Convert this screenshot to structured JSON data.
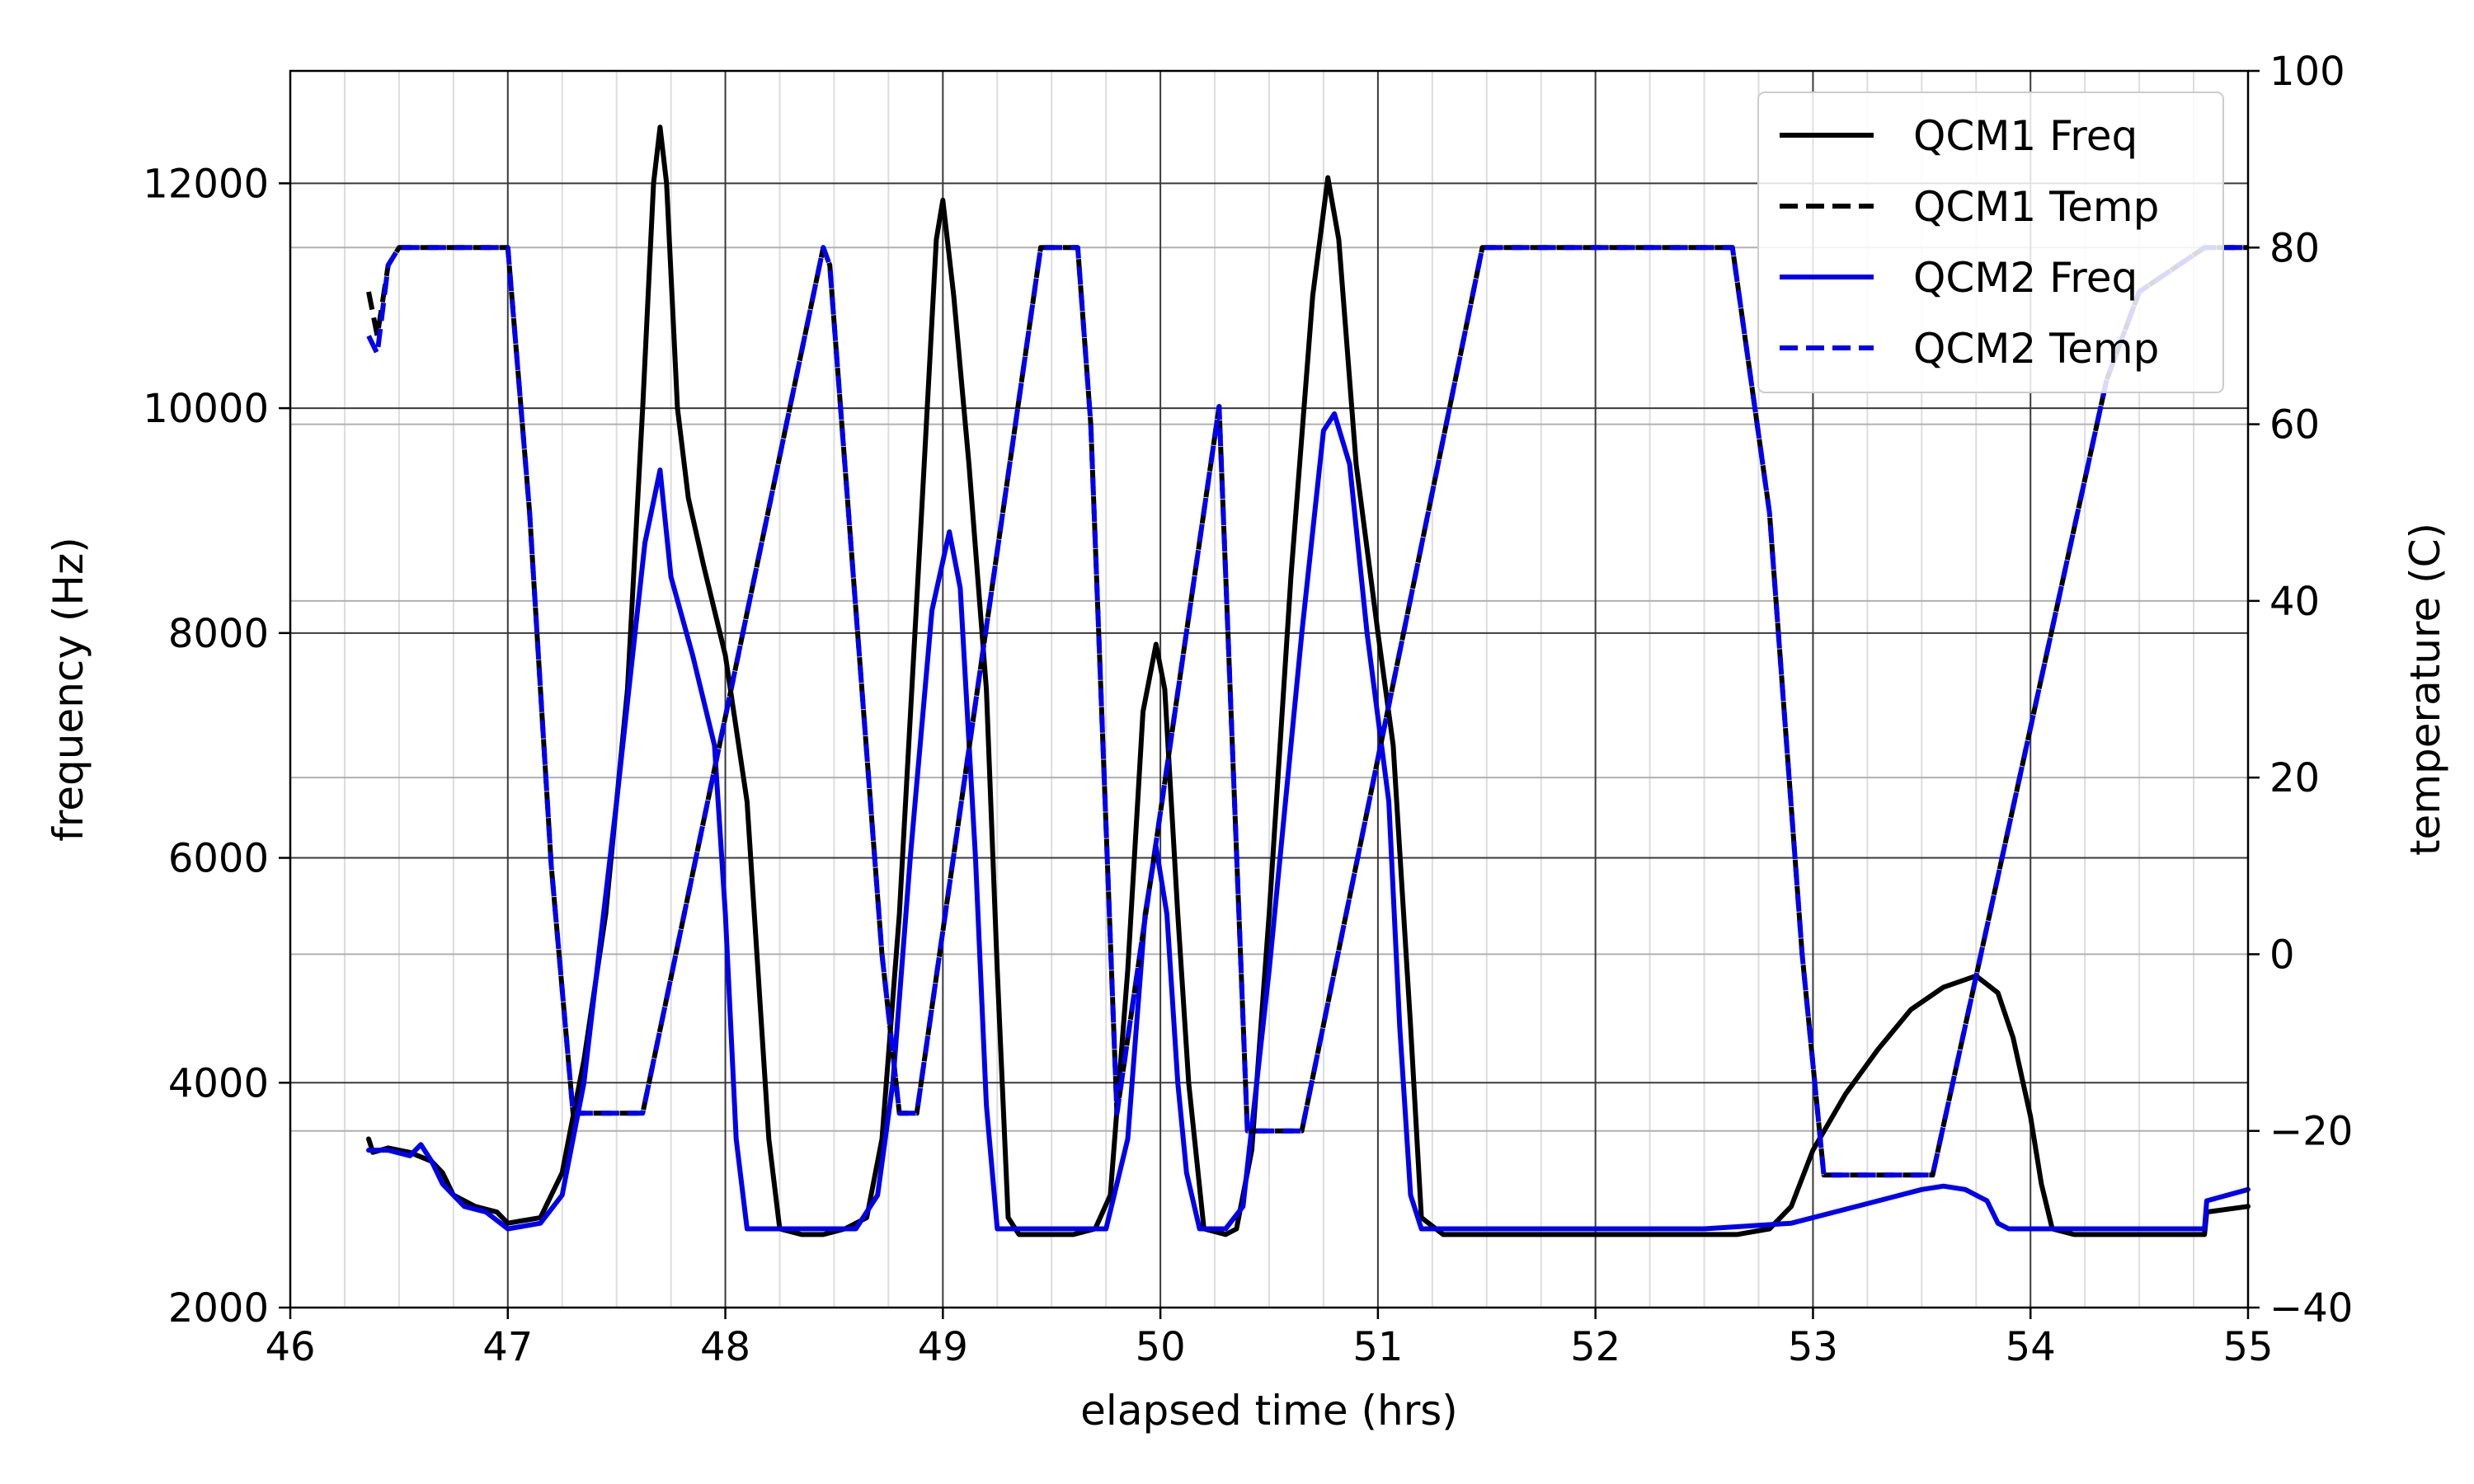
{
  "chart_data": {
    "type": "line",
    "title": "",
    "xlabel": "elapsed time (hrs)",
    "ylabel": "frequency (Hz)",
    "y2label": "temperature (C)",
    "xlim": [
      46,
      55
    ],
    "ylim": [
      2000,
      13000
    ],
    "y2lim": [
      -40,
      100
    ],
    "xticks": [
      46,
      47,
      48,
      49,
      50,
      51,
      52,
      53,
      54,
      55
    ],
    "yticks": [
      2000,
      4000,
      6000,
      8000,
      10000,
      12000
    ],
    "y2ticks": [
      -40,
      -20,
      0,
      20,
      40,
      60,
      80,
      100
    ],
    "grid": true,
    "minor_grid": true,
    "legend_position": "top-right",
    "series": [
      {
        "name": "QCM1 Freq",
        "axis": "left",
        "color": "#000000",
        "style": "solid",
        "points": [
          [
            46.36,
            3500
          ],
          [
            46.38,
            3380
          ],
          [
            46.45,
            3420
          ],
          [
            46.55,
            3380
          ],
          [
            46.65,
            3300
          ],
          [
            46.7,
            3200
          ],
          [
            46.75,
            3000
          ],
          [
            46.85,
            2900
          ],
          [
            46.95,
            2850
          ],
          [
            47.0,
            2750
          ],
          [
            47.15,
            2800
          ],
          [
            47.25,
            3200
          ],
          [
            47.35,
            4200
          ],
          [
            47.45,
            5500
          ],
          [
            47.55,
            7500
          ],
          [
            47.62,
            10000
          ],
          [
            47.67,
            12000
          ],
          [
            47.7,
            12500
          ],
          [
            47.73,
            12000
          ],
          [
            47.78,
            10000
          ],
          [
            47.83,
            9200
          ],
          [
            47.9,
            8600
          ],
          [
            48.0,
            7800
          ],
          [
            48.1,
            6500
          ],
          [
            48.15,
            5000
          ],
          [
            48.2,
            3500
          ],
          [
            48.25,
            2700
          ],
          [
            48.35,
            2650
          ],
          [
            48.45,
            2650
          ],
          [
            48.55,
            2700
          ],
          [
            48.65,
            2800
          ],
          [
            48.72,
            3500
          ],
          [
            48.8,
            5500
          ],
          [
            48.9,
            9000
          ],
          [
            48.97,
            11500
          ],
          [
            49.0,
            11850
          ],
          [
            49.05,
            11000
          ],
          [
            49.12,
            9500
          ],
          [
            49.2,
            7500
          ],
          [
            49.25,
            5000
          ],
          [
            49.3,
            2800
          ],
          [
            49.35,
            2650
          ],
          [
            49.45,
            2650
          ],
          [
            49.6,
            2650
          ],
          [
            49.7,
            2700
          ],
          [
            49.77,
            3000
          ],
          [
            49.85,
            5000
          ],
          [
            49.92,
            7300
          ],
          [
            49.98,
            7900
          ],
          [
            50.02,
            7500
          ],
          [
            50.08,
            5500
          ],
          [
            50.13,
            4000
          ],
          [
            50.2,
            2700
          ],
          [
            50.3,
            2650
          ],
          [
            50.35,
            2700
          ],
          [
            50.42,
            3400
          ],
          [
            50.5,
            5500
          ],
          [
            50.6,
            8500
          ],
          [
            50.7,
            11000
          ],
          [
            50.77,
            12050
          ],
          [
            50.82,
            11500
          ],
          [
            50.9,
            9500
          ],
          [
            51.0,
            8000
          ],
          [
            51.07,
            7000
          ],
          [
            51.15,
            4500
          ],
          [
            51.2,
            2800
          ],
          [
            51.3,
            2650
          ],
          [
            51.5,
            2650
          ],
          [
            52.0,
            2650
          ],
          [
            52.5,
            2650
          ],
          [
            52.65,
            2650
          ],
          [
            52.8,
            2700
          ],
          [
            52.9,
            2900
          ],
          [
            53.0,
            3400
          ],
          [
            53.15,
            3900
          ],
          [
            53.3,
            4300
          ],
          [
            53.45,
            4650
          ],
          [
            53.6,
            4850
          ],
          [
            53.75,
            4950
          ],
          [
            53.85,
            4800
          ],
          [
            53.92,
            4400
          ],
          [
            54.0,
            3700
          ],
          [
            54.05,
            3100
          ],
          [
            54.1,
            2700
          ],
          [
            54.2,
            2650
          ],
          [
            54.4,
            2650
          ],
          [
            54.6,
            2650
          ],
          [
            54.8,
            2650
          ],
          [
            54.81,
            2850
          ],
          [
            55.0,
            2900
          ]
        ]
      },
      {
        "name": "QCM1 Temp",
        "axis": "right",
        "color": "#000000",
        "style": "dashed",
        "points": [
          [
            46.36,
            75
          ],
          [
            46.4,
            70
          ],
          [
            46.45,
            78
          ],
          [
            46.5,
            80
          ],
          [
            47.0,
            80
          ],
          [
            47.1,
            50
          ],
          [
            47.2,
            10
          ],
          [
            47.3,
            -18
          ],
          [
            47.35,
            -18
          ],
          [
            47.62,
            -18
          ],
          [
            48.45,
            80
          ],
          [
            48.48,
            78
          ],
          [
            48.72,
            0
          ],
          [
            48.8,
            -18
          ],
          [
            48.88,
            -18
          ],
          [
            49.45,
            80
          ],
          [
            49.62,
            80
          ],
          [
            49.68,
            60
          ],
          [
            49.8,
            -18
          ],
          [
            50.27,
            62
          ],
          [
            50.4,
            -20
          ],
          [
            50.65,
            -20
          ],
          [
            51.48,
            80
          ],
          [
            52.63,
            80
          ],
          [
            52.8,
            50
          ],
          [
            52.95,
            0
          ],
          [
            53.05,
            -25
          ],
          [
            53.55,
            -25
          ],
          [
            54.35,
            65
          ],
          [
            54.5,
            75
          ],
          [
            54.8,
            80
          ],
          [
            55.0,
            80
          ]
        ]
      },
      {
        "name": "QCM2 Freq",
        "axis": "left",
        "color": "#0000ee",
        "style": "solid",
        "points": [
          [
            46.36,
            3400
          ],
          [
            46.45,
            3400
          ],
          [
            46.55,
            3350
          ],
          [
            46.6,
            3450
          ],
          [
            46.65,
            3300
          ],
          [
            46.7,
            3100
          ],
          [
            46.8,
            2900
          ],
          [
            46.9,
            2850
          ],
          [
            47.0,
            2700
          ],
          [
            47.15,
            2750
          ],
          [
            47.25,
            3000
          ],
          [
            47.35,
            4000
          ],
          [
            47.5,
            6500
          ],
          [
            47.63,
            8800
          ],
          [
            47.7,
            9450
          ],
          [
            47.75,
            8500
          ],
          [
            47.85,
            7800
          ],
          [
            47.95,
            7000
          ],
          [
            48.0,
            5500
          ],
          [
            48.05,
            3500
          ],
          [
            48.1,
            2700
          ],
          [
            48.2,
            2700
          ],
          [
            48.4,
            2700
          ],
          [
            48.6,
            2700
          ],
          [
            48.7,
            3000
          ],
          [
            48.77,
            4000
          ],
          [
            48.85,
            6000
          ],
          [
            48.95,
            8200
          ],
          [
            49.03,
            8900
          ],
          [
            49.08,
            8400
          ],
          [
            49.15,
            6000
          ],
          [
            49.2,
            3800
          ],
          [
            49.25,
            2700
          ],
          [
            49.4,
            2700
          ],
          [
            49.6,
            2700
          ],
          [
            49.75,
            2700
          ],
          [
            49.85,
            3500
          ],
          [
            49.93,
            5500
          ],
          [
            49.98,
            6100
          ],
          [
            50.03,
            5500
          ],
          [
            50.08,
            4000
          ],
          [
            50.12,
            3200
          ],
          [
            50.18,
            2700
          ],
          [
            50.3,
            2700
          ],
          [
            50.38,
            2900
          ],
          [
            50.5,
            5000
          ],
          [
            50.65,
            8000
          ],
          [
            50.75,
            9800
          ],
          [
            50.8,
            9950
          ],
          [
            50.87,
            9500
          ],
          [
            50.95,
            8000
          ],
          [
            51.05,
            6500
          ],
          [
            51.1,
            4500
          ],
          [
            51.15,
            3000
          ],
          [
            51.2,
            2700
          ],
          [
            51.5,
            2700
          ],
          [
            52.0,
            2700
          ],
          [
            52.5,
            2700
          ],
          [
            52.9,
            2750
          ],
          [
            53.1,
            2850
          ],
          [
            53.3,
            2950
          ],
          [
            53.5,
            3050
          ],
          [
            53.6,
            3080
          ],
          [
            53.7,
            3050
          ],
          [
            53.8,
            2950
          ],
          [
            53.85,
            2750
          ],
          [
            53.9,
            2700
          ],
          [
            54.2,
            2700
          ],
          [
            54.5,
            2700
          ],
          [
            54.8,
            2700
          ],
          [
            54.81,
            2950
          ],
          [
            55.0,
            3050
          ]
        ]
      },
      {
        "name": "QCM2 Temp",
        "axis": "right",
        "color": "#0000ee",
        "style": "dashed",
        "points": [
          [
            46.36,
            70
          ],
          [
            46.4,
            68
          ],
          [
            46.45,
            78
          ],
          [
            46.5,
            80
          ],
          [
            47.0,
            80
          ],
          [
            47.1,
            50
          ],
          [
            47.2,
            10
          ],
          [
            47.3,
            -18
          ],
          [
            47.35,
            -18
          ],
          [
            47.62,
            -18
          ],
          [
            48.45,
            80
          ],
          [
            48.48,
            78
          ],
          [
            48.72,
            0
          ],
          [
            48.8,
            -18
          ],
          [
            48.88,
            -18
          ],
          [
            49.45,
            80
          ],
          [
            49.62,
            80
          ],
          [
            49.68,
            60
          ],
          [
            49.8,
            -18
          ],
          [
            50.27,
            62
          ],
          [
            50.4,
            -20
          ],
          [
            50.65,
            -20
          ],
          [
            51.48,
            80
          ],
          [
            52.63,
            80
          ],
          [
            52.8,
            50
          ],
          [
            52.95,
            0
          ],
          [
            53.05,
            -25
          ],
          [
            53.55,
            -25
          ],
          [
            54.35,
            65
          ],
          [
            54.5,
            75
          ],
          [
            54.8,
            80
          ],
          [
            55.0,
            80
          ]
        ]
      }
    ]
  }
}
